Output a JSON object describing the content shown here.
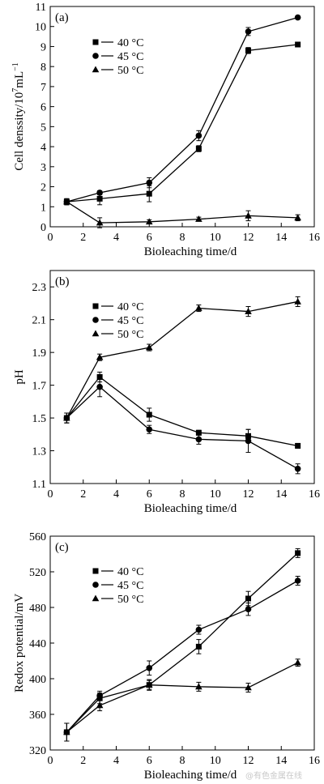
{
  "chart_data": [
    {
      "type": "line",
      "panel_label": "(a)",
      "xlabel": "Bioleaching time/d",
      "ylabel": "Cell denssity/10",
      "ylabel_sup": "7",
      "ylabel_unit": "mL",
      "ylabel_unit_sup": "−1",
      "xlim": [
        0,
        16
      ],
      "ylim": [
        0,
        11
      ],
      "xticks": [
        0,
        2,
        4,
        6,
        8,
        10,
        12,
        14,
        16
      ],
      "yticks": [
        0,
        1,
        2,
        3,
        4,
        5,
        6,
        7,
        8,
        9,
        10,
        11
      ],
      "x": [
        1,
        3,
        6,
        9,
        12,
        15
      ],
      "legend_position": "upper-left",
      "series": [
        {
          "name": "40 °C",
          "marker": "square",
          "values": [
            1.25,
            1.4,
            1.65,
            3.9,
            8.8,
            9.1
          ],
          "err": [
            0.15,
            0.3,
            0.4,
            0.15,
            0.15,
            0.1
          ]
        },
        {
          "name": "45 °C",
          "marker": "circle",
          "values": [
            1.25,
            1.7,
            2.2,
            4.55,
            9.75,
            10.45
          ],
          "err": [
            0.15,
            0.1,
            0.25,
            0.25,
            0.2,
            0.08
          ]
        },
        {
          "name": "50 °C",
          "marker": "triangle",
          "values": [
            1.25,
            0.2,
            0.25,
            0.38,
            0.55,
            0.45
          ],
          "err": [
            0.15,
            0.25,
            0.1,
            0.1,
            0.25,
            0.15
          ]
        }
      ]
    },
    {
      "type": "line",
      "panel_label": "(b)",
      "xlabel": "Bioleaching time/d",
      "ylabel": "pH",
      "xlim": [
        0,
        16
      ],
      "ylim": [
        1.1,
        2.4
      ],
      "xticks": [
        0,
        2,
        4,
        6,
        8,
        10,
        12,
        14,
        16
      ],
      "yticks": [
        1.1,
        1.3,
        1.5,
        1.7,
        1.9,
        2.1,
        2.3
      ],
      "x": [
        1,
        3,
        6,
        9,
        12,
        15
      ],
      "legend_position": "upper-left",
      "series": [
        {
          "name": "40 °C",
          "marker": "square",
          "values": [
            1.5,
            1.75,
            1.52,
            1.41,
            1.39,
            1.33
          ],
          "err": [
            0.03,
            0.03,
            0.04,
            0.015,
            0.04,
            0.015
          ]
        },
        {
          "name": "45 °C",
          "marker": "circle",
          "values": [
            1.5,
            1.69,
            1.43,
            1.37,
            1.36,
            1.19
          ],
          "err": [
            0.03,
            0.06,
            0.025,
            0.03,
            0.07,
            0.03
          ]
        },
        {
          "name": "50 °C",
          "marker": "triangle",
          "values": [
            1.5,
            1.87,
            1.93,
            2.17,
            2.15,
            2.21
          ],
          "err": [
            0.03,
            0.02,
            0.02,
            0.02,
            0.03,
            0.03
          ]
        }
      ]
    },
    {
      "type": "line",
      "panel_label": "(c)",
      "xlabel": "Bioleaching time/d",
      "ylabel": "Redox potential/mV",
      "xlim": [
        0,
        16
      ],
      "ylim": [
        320,
        560
      ],
      "xticks": [
        0,
        2,
        4,
        6,
        8,
        10,
        12,
        14,
        16
      ],
      "yticks": [
        320,
        360,
        400,
        440,
        480,
        520,
        560
      ],
      "x": [
        1,
        3,
        6,
        9,
        12,
        15
      ],
      "legend_position": "upper-left",
      "series": [
        {
          "name": "40 °C",
          "marker": "square",
          "values": [
            340,
            378,
            393,
            436,
            490,
            541
          ],
          "err": [
            10,
            6,
            6,
            8,
            8,
            5
          ]
        },
        {
          "name": "45 °C",
          "marker": "circle",
          "values": [
            340,
            381,
            412,
            455,
            478,
            510
          ],
          "err": [
            10,
            5,
            8,
            5,
            7,
            5
          ]
        },
        {
          "name": "50 °C",
          "marker": "triangle",
          "values": [
            340,
            370,
            393,
            391,
            390,
            418
          ],
          "err": [
            10,
            6,
            5,
            5,
            5,
            4
          ]
        }
      ]
    }
  ],
  "watermark": "@有色金属在线"
}
